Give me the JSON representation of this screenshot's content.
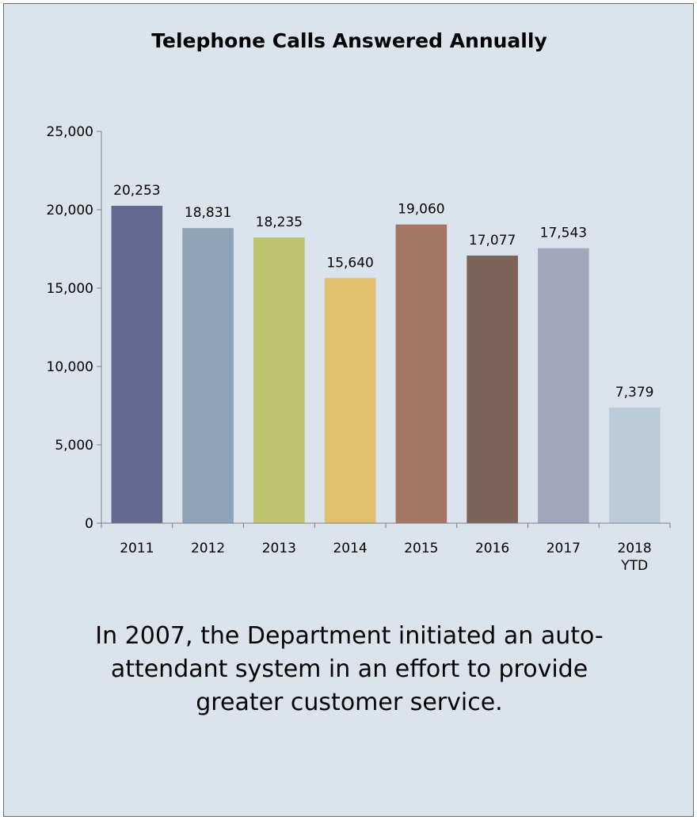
{
  "chart_data": {
    "type": "bar",
    "title": "Telephone Calls  Answered Annually",
    "categories": [
      "2011",
      "2012",
      "2013",
      "2014",
      "2015",
      "2016",
      "2017",
      "2018 YTD"
    ],
    "category_lines": [
      [
        "2011"
      ],
      [
        "2012"
      ],
      [
        "2013"
      ],
      [
        "2014"
      ],
      [
        "2015"
      ],
      [
        "2016"
      ],
      [
        "2017"
      ],
      [
        "2018",
        "YTD"
      ]
    ],
    "values": [
      20253,
      18831,
      18235,
      15640,
      19060,
      17077,
      17543,
      7379
    ],
    "data_labels": [
      "20,253",
      "18,831",
      "18,235",
      "15,640",
      "19,060",
      "17,077",
      "17,543",
      "7,379"
    ],
    "bar_colors": [
      "#65698f",
      "#8fa5b7",
      "#bcc46e",
      "#e0c06c",
      "#a47565",
      "#7d645a",
      "#a2a7bd",
      "#bccbda"
    ],
    "yticks": [
      0,
      5000,
      10000,
      15000,
      20000,
      25000
    ],
    "ytick_labels": [
      "0",
      "5,000",
      "10,000",
      "15,000",
      "20,000",
      "25,000"
    ],
    "ylim": [
      0,
      25000
    ],
    "xlabel": "",
    "ylabel": "",
    "grid": false,
    "legend": "none"
  },
  "note": {
    "text": "In 2007, the Department initiated an auto-attendant system in an effort to provide greater customer service."
  }
}
